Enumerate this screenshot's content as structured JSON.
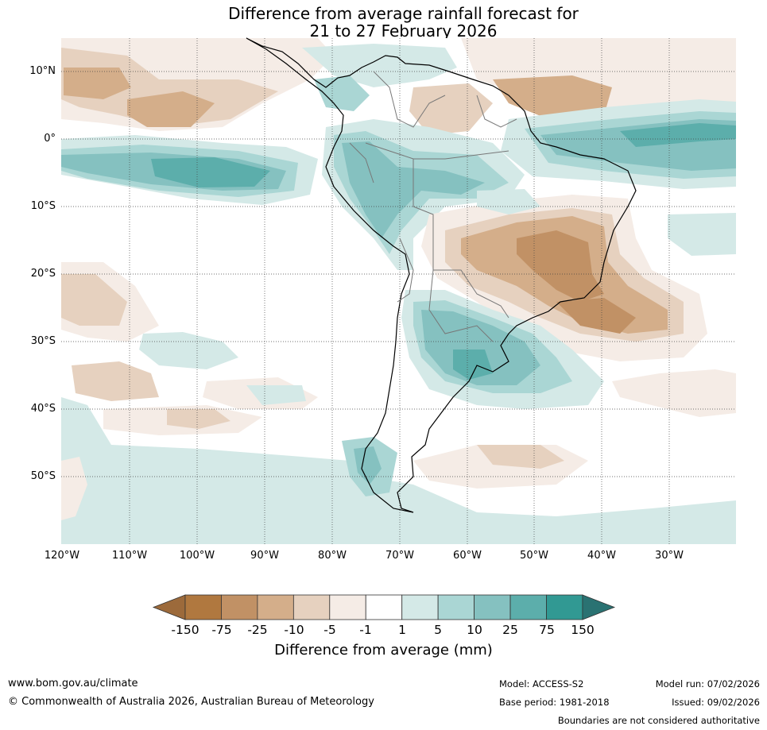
{
  "title": {
    "line1": "Difference from average rainfall forecast for",
    "line2": "21 to 27 February 2026"
  },
  "map": {
    "region": "South America",
    "lat_labels": [
      "10°N",
      "0°",
      "10°S",
      "20°S",
      "30°S",
      "40°S",
      "50°S"
    ],
    "lon_labels": [
      "120°W",
      "110°W",
      "100°W",
      "90°W",
      "80°W",
      "70°W",
      "60°W",
      "50°W",
      "40°W",
      "30°W"
    ]
  },
  "legend": {
    "title": "Difference from average (mm)",
    "ticks": [
      "-150",
      "-75",
      "-25",
      "-10",
      "-5",
      "-1",
      "1",
      "5",
      "10",
      "25",
      "75",
      "150"
    ],
    "colors": [
      "#9c6a3b",
      "#b0783f",
      "#c19165",
      "#d4ae8a",
      "#e6d1bf",
      "#f5ece6",
      "#ffffff",
      "#d4e9e7",
      "#aad6d4",
      "#85c1c0",
      "#5caeab",
      "#319993",
      "#2a7272"
    ]
  },
  "footer": {
    "website": "www.bom.gov.au/climate",
    "copyright": "© Commonwealth of Australia 2026, Australian Bureau of Meteorology",
    "model": "Model: ACCESS-S2",
    "base_period": "Base period: 1981-2018",
    "model_run": "Model run: 07/02/2026",
    "issued": "Issued: 09/02/2026",
    "disclaimer": "Boundaries are not considered authoritative"
  }
}
